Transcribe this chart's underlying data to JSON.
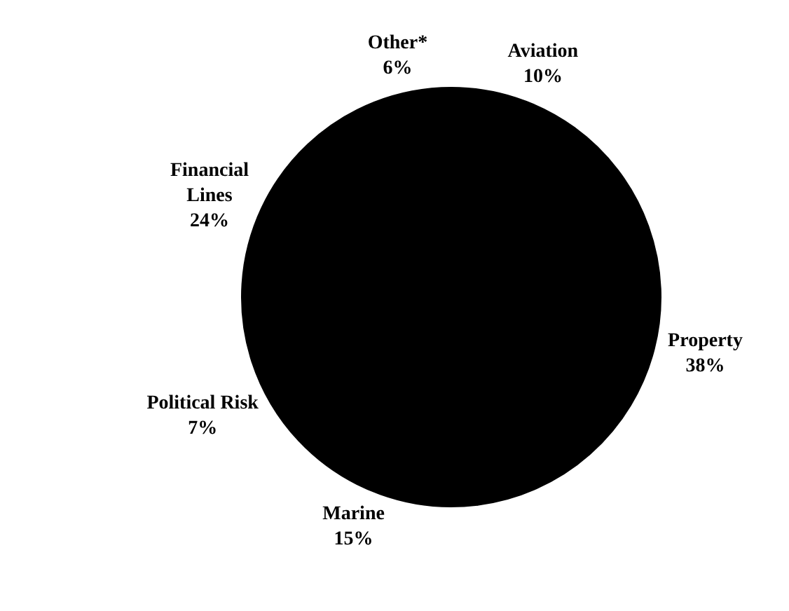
{
  "chart_data": {
    "type": "pie",
    "categories": [
      "Aviation",
      "Property",
      "Marine",
      "Political Risk",
      "Financial Lines",
      "Other*"
    ],
    "values": [
      10,
      38,
      15,
      7,
      24,
      6
    ],
    "value_labels": [
      "10%",
      "38%",
      "15%",
      "7%",
      "24%",
      "6%"
    ],
    "colors": [
      "#000000",
      "#000000",
      "#000000",
      "#000000",
      "#000000",
      "#000000"
    ],
    "legend": false
  }
}
